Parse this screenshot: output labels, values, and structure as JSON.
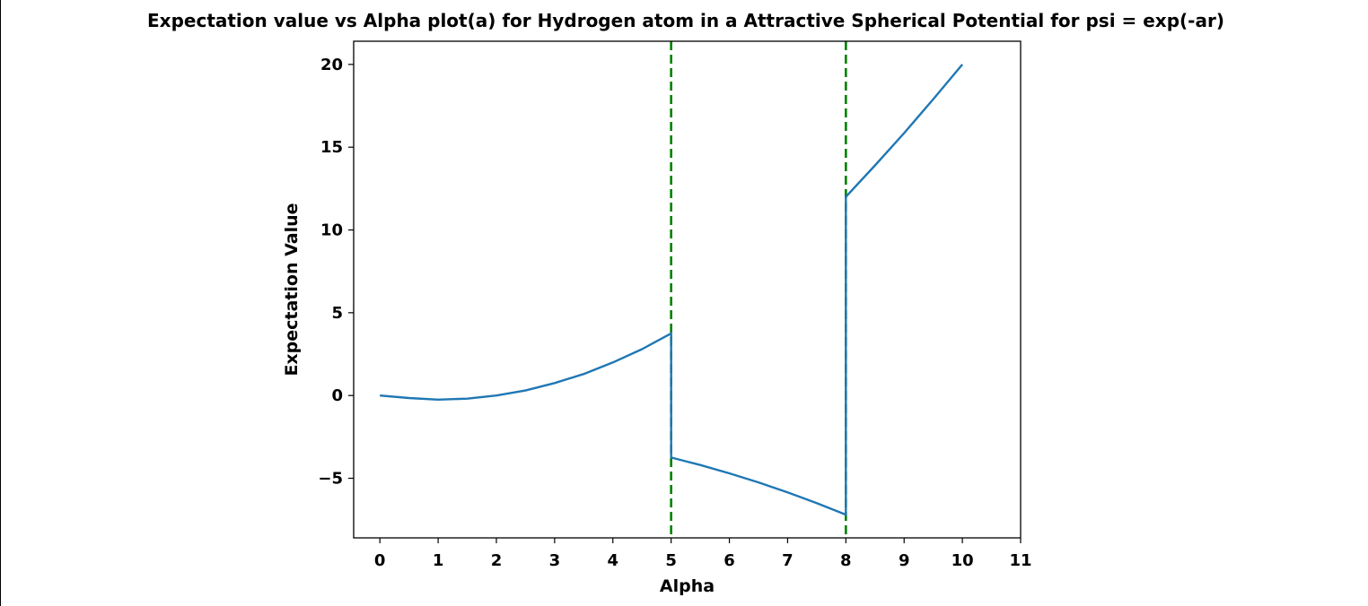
{
  "chart_data": {
    "type": "line",
    "title": "Expectation value vs Alpha plot(a) for Hydrogen atom in a Attractive Spherical Potential for psi = exp(-ar)",
    "xlabel": "Alpha",
    "ylabel": "Expectation Value",
    "xlim": [
      -0.45,
      11
    ],
    "ylim": [
      -8.6,
      21.4
    ],
    "xticks": [
      0,
      1,
      2,
      3,
      4,
      5,
      6,
      7,
      8,
      9,
      10,
      11
    ],
    "yticks": [
      -5,
      0,
      5,
      10,
      15,
      20
    ],
    "ytick_labels": [
      "−5",
      "0",
      "5",
      "10",
      "15",
      "20"
    ],
    "grid": false,
    "legend": "none",
    "series": [
      {
        "color": "#1f77b4",
        "x": [
          0,
          0.5,
          1,
          1.5,
          2,
          2.5,
          3,
          3.5,
          4,
          4.5,
          5,
          5,
          5.5,
          6,
          6.5,
          7,
          7.5,
          8,
          8,
          8.5,
          9,
          9.5,
          10
        ],
        "y": [
          0,
          -0.15,
          -0.25,
          -0.19,
          0.0,
          0.3,
          0.75,
          1.3,
          2.0,
          2.8,
          3.75,
          -3.75,
          -4.2,
          -4.7,
          -5.25,
          -5.85,
          -6.5,
          -7.2,
          12.0,
          13.9,
          15.85,
          17.9,
          20.0
        ]
      }
    ],
    "vlines": [
      {
        "x": 5,
        "color": "#008000",
        "style": "dashed"
      },
      {
        "x": 8,
        "color": "#008000",
        "style": "dashed"
      }
    ]
  }
}
